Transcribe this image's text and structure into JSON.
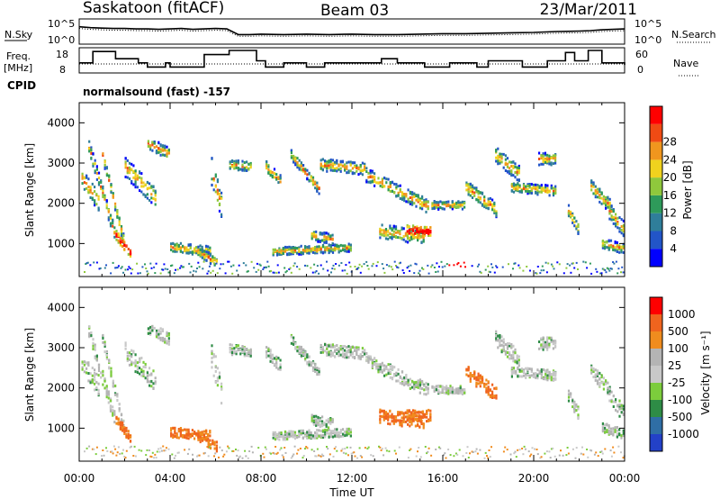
{
  "header": {
    "station": "Saskatoon (fitACF)",
    "beam": "Beam 03",
    "date": "23/Mar/2011",
    "cpid_label": "CPID",
    "cpid_value": "normalsound (fast) -157"
  },
  "colors": {
    "frame": "#000000",
    "power_scale": [
      "#0000ff",
      "#2255c8",
      "#2f7e9a",
      "#2e9a5a",
      "#8fc83c",
      "#f0d21e",
      "#f0961e",
      "#f04b14",
      "#ff0000"
    ],
    "velocity_scale": [
      "#2341c8",
      "#2f6ea5",
      "#2e8c46",
      "#7ccd3c",
      "#c8c8c8",
      "#b4b4b4",
      "#f08c1e",
      "#f0641e",
      "#ff0000"
    ]
  },
  "chart_data": [
    {
      "type": "line",
      "name": "noise-panel",
      "left_label": "N.Sky",
      "right_label": "N.Search",
      "left_ticks": [
        "10^5",
        "10^0"
      ],
      "right_ticks": [
        "10^5",
        "10^0"
      ],
      "x": [
        0,
        0.5,
        1,
        1.5,
        2,
        2.5,
        3,
        3.5,
        4,
        4.5,
        5,
        5.5,
        6,
        6.5,
        7,
        7.5,
        8,
        9,
        10,
        11,
        12,
        13,
        14,
        15,
        16,
        17,
        18,
        19,
        20,
        21,
        22,
        22.5,
        23,
        23.5,
        24
      ],
      "series": [
        {
          "values": [
            3.6,
            3.4,
            3.3,
            3.2,
            3.2,
            3.1,
            3.1,
            3.0,
            3.1,
            3.2,
            3.0,
            3.1,
            3.2,
            3.1,
            1.8,
            1.8,
            1.9,
            1.8,
            1.9,
            1.8,
            1.9,
            1.8,
            1.8,
            1.9,
            2.0,
            2.0,
            2.1,
            2.2,
            2.3,
            2.5,
            2.6,
            2.7,
            2.9,
            3.0,
            3.1
          ]
        }
      ]
    },
    {
      "type": "line",
      "name": "frequency-panel",
      "left_label": "Freq.",
      "left_unit": "[MHz]",
      "left_ticks": [
        "18",
        "8"
      ],
      "right_label": "Nave",
      "right_ticks": [
        "60",
        "0"
      ],
      "x": [
        0,
        0.6,
        1.6,
        2.6,
        3.0,
        3.8,
        4.0,
        5.5,
        6.6,
        7.8,
        8.2,
        9.0,
        10.0,
        10.8,
        13.3,
        14.0,
        15.2,
        16.3,
        17.5,
        18.0,
        19.5,
        20.6,
        21.4,
        21.8,
        22.4,
        23.0,
        24.0
      ],
      "series": [
        {
          "values": [
            12,
            17.5,
            14,
            12,
            10,
            12,
            10,
            16,
            18,
            13,
            10,
            12,
            10,
            12,
            14,
            12,
            10,
            12,
            10,
            13,
            10,
            13,
            17,
            13,
            18,
            12,
            11
          ]
        }
      ]
    },
    {
      "type": "heatmap",
      "name": "power",
      "ylabel": "Slant Range [km]",
      "yticks": [
        1000,
        2000,
        3000,
        4000
      ],
      "ylim": [
        180,
        4500
      ],
      "xlim": [
        0,
        24
      ],
      "colorbar_label": "Power [dB]",
      "colorbar_ticks": [
        "4",
        "8",
        "12",
        "16",
        "20",
        "24",
        "28"
      ]
    },
    {
      "type": "heatmap",
      "name": "velocity",
      "ylabel": "Slant Range [km]",
      "yticks": [
        1000,
        2000,
        3000,
        4000
      ],
      "ylim": [
        180,
        4500
      ],
      "xlim": [
        0,
        24
      ],
      "xlabel": "Time UT",
      "xticks": [
        "00:00",
        "04:00",
        "08:00",
        "12:00",
        "16:00",
        "20:00",
        "00:00"
      ],
      "colorbar_label": "Velocity [m s⁻¹]",
      "colorbar_ticks": [
        "1000",
        "500",
        "100",
        "25",
        "-25",
        "-100",
        "-500",
        "-1000"
      ]
    }
  ]
}
